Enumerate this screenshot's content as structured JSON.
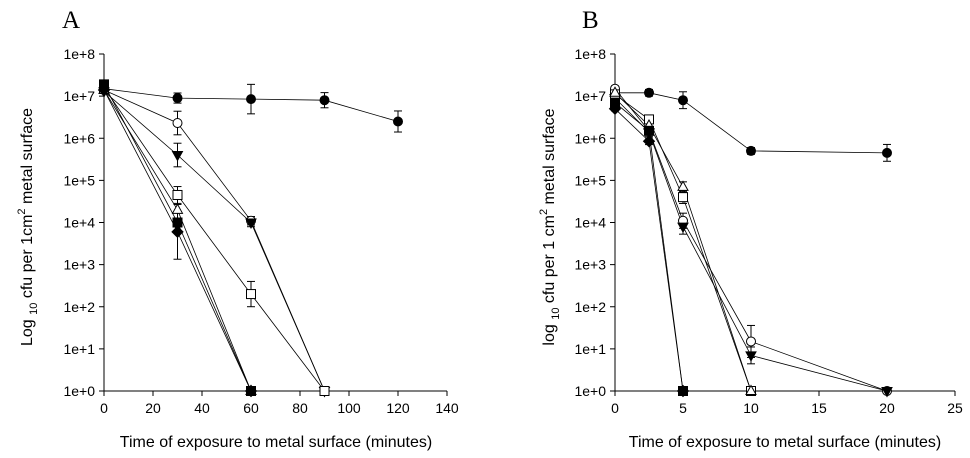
{
  "chart_data": [
    {
      "type": "line",
      "panel_label": "A",
      "xlabel": "Time of exposure to metal surface (minutes)",
      "ylabel": {
        "prefix": "Log ",
        "sub": "10",
        "mid": " cfu per 1cm",
        "sup": "2",
        "suffix": " metal surface"
      },
      "xlim": [
        0,
        140
      ],
      "xticks": [
        0,
        20,
        40,
        60,
        80,
        100,
        120,
        140
      ],
      "ylim_log10": [
        0,
        8
      ],
      "yscale": "log",
      "yticks": [
        "1e+0",
        "1e+1",
        "1e+2",
        "1e+3",
        "1e+4",
        "1e+5",
        "1e+6",
        "1e+7",
        "1e+8"
      ],
      "series": [
        {
          "marker": "filled-circle",
          "x": [
            0,
            30,
            60,
            90,
            120
          ],
          "y": [
            15000000,
            9000000,
            8500000,
            8000000,
            2500000
          ],
          "err_log10": [
            0.1,
            0.12,
            0.35,
            0.18,
            0.25
          ]
        },
        {
          "marker": "open-circle",
          "x": [
            0,
            30,
            60,
            90
          ],
          "y": [
            14000000,
            2300000,
            11000,
            1
          ],
          "err_log10": [
            0.05,
            0.28,
            0.1,
            0
          ]
        },
        {
          "marker": "filled-triangle-down",
          "x": [
            0,
            30,
            60,
            90
          ],
          "y": [
            13000000,
            400000,
            10000,
            1
          ],
          "err_log10": [
            0.05,
            0.28,
            0.1,
            0
          ]
        },
        {
          "marker": "open-square",
          "x": [
            0,
            30,
            60,
            90
          ],
          "y": [
            16000000,
            45000,
            200,
            1
          ],
          "err_log10": [
            0.05,
            0.2,
            0.3,
            0
          ]
        },
        {
          "marker": "open-triangle-up",
          "x": [
            0,
            30,
            60
          ],
          "y": [
            14000000,
            20000,
            1
          ],
          "err_log10": [
            0.05,
            0.35,
            0
          ]
        },
        {
          "marker": "filled-diamond",
          "x": [
            0,
            30,
            60
          ],
          "y": [
            14000000,
            6000,
            1
          ],
          "err_log10": [
            0.05,
            0.65,
            0
          ]
        },
        {
          "marker": "filled-square",
          "x": [
            0,
            30,
            60
          ],
          "y": [
            19000000,
            10000,
            1
          ],
          "err_log10": [
            0.05,
            0,
            0
          ]
        }
      ]
    },
    {
      "type": "line",
      "panel_label": "B",
      "xlabel": "Time of exposure to metal surface (minutes)",
      "ylabel": {
        "prefix": "log ",
        "sub": "10",
        "mid": " cfu per 1 cm",
        "sup": "2",
        "suffix": " metal surface"
      },
      "xlim": [
        0,
        25
      ],
      "xticks": [
        0,
        5,
        10,
        15,
        20,
        25
      ],
      "ylim_log10": [
        0,
        8
      ],
      "yscale": "log",
      "yticks": [
        "1e+0",
        "1e+1",
        "1e+2",
        "1e+3",
        "1e+4",
        "1e+5",
        "1e+6",
        "1e+7",
        "1e+8"
      ],
      "series": [
        {
          "marker": "filled-circle",
          "x": [
            0,
            2.5,
            5,
            10,
            20
          ],
          "y": [
            12000000,
            12000000,
            8000000,
            500000,
            450000
          ],
          "err_log10": [
            0.05,
            0.08,
            0.2,
            0.08,
            0.2
          ]
        },
        {
          "marker": "open-circle",
          "x": [
            0,
            2.5,
            5,
            10,
            20
          ],
          "y": [
            15000000,
            1500000,
            11000,
            15,
            1
          ],
          "err_log10": [
            0.05,
            0.1,
            0.18,
            0.38,
            0
          ]
        },
        {
          "marker": "filled-triangle-down",
          "x": [
            0,
            2.5,
            5,
            10,
            20
          ],
          "y": [
            9000000,
            1400000,
            8000,
            7,
            1
          ],
          "err_log10": [
            0.05,
            0.1,
            0.18,
            0.2,
            0
          ]
        },
        {
          "marker": "open-square",
          "x": [
            0,
            2.5,
            5,
            10
          ],
          "y": [
            11000000,
            2800000,
            40000,
            1
          ],
          "err_log10": [
            0.05,
            0.08,
            0.15,
            0
          ]
        },
        {
          "marker": "open-triangle-up",
          "x": [
            0,
            2.5,
            5,
            10
          ],
          "y": [
            12000000,
            2000000,
            70000,
            1
          ],
          "err_log10": [
            0.05,
            0.08,
            0.12,
            0
          ]
        },
        {
          "marker": "filled-diamond",
          "x": [
            0,
            2.5,
            5
          ],
          "y": [
            5000000,
            850000,
            1
          ],
          "err_log10": [
            0.05,
            0.08,
            0
          ]
        },
        {
          "marker": "filled-square",
          "x": [
            0,
            2.5,
            5
          ],
          "y": [
            7000000,
            1500000,
            1
          ],
          "err_log10": [
            0.05,
            0.08,
            0
          ]
        }
      ]
    }
  ]
}
